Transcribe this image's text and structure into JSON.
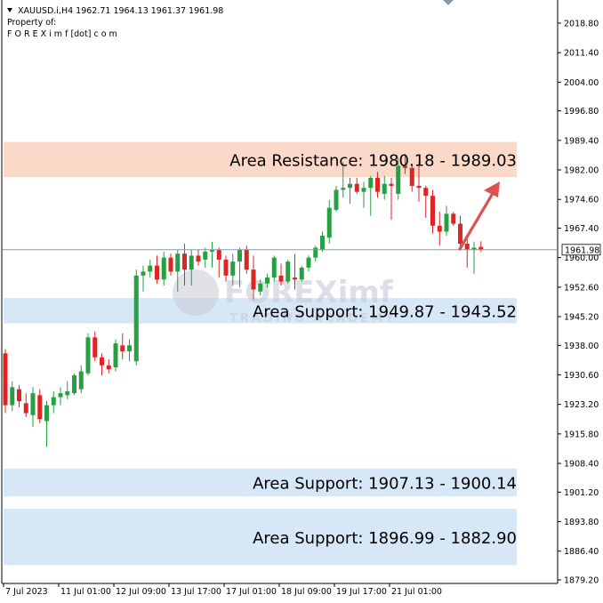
{
  "header": {
    "symbol_line": "XAUUSD.i,H4  1962.71 1964.13 1961.37 1961.98",
    "property_line": "Property of:",
    "owner_line": "F O R E X i m f [dot] c o m"
  },
  "watermark": {
    "brand": "FOREXimf",
    "tagline": "TRADING ACADEMY"
  },
  "colors": {
    "bull": "#26a042",
    "bear": "#e02424",
    "resistance_zone": "#fbd9c9",
    "support_zone": "#d6e8f7",
    "arrow": "#e05050",
    "current_price_line": "#8a9aa8"
  },
  "chart_data": {
    "type": "candlestick",
    "symbol": "XAUUSD.i",
    "timeframe": "H4",
    "ylim": [
      1879.2,
      2022.5
    ],
    "y_ticks": [
      "2018.80",
      "2011.40",
      "2004.00",
      "1996.80",
      "1989.40",
      "1982.00",
      "1974.60",
      "1967.40",
      "1960.00",
      "1952.60",
      "1945.20",
      "1938.00",
      "1930.60",
      "1923.20",
      "1915.80",
      "1908.40",
      "1901.20",
      "1893.80",
      "1886.40",
      "1879.20"
    ],
    "y_tick_values": [
      2018.8,
      2011.4,
      2004.0,
      1996.8,
      1989.4,
      1982.0,
      1974.6,
      1967.4,
      1960.0,
      1952.6,
      1945.2,
      1938.0,
      1930.6,
      1923.2,
      1915.8,
      1908.4,
      1901.2,
      1893.8,
      1886.4,
      1879.2
    ],
    "x_ticks": [
      {
        "label": "7 Jul 2023",
        "index": 0
      },
      {
        "label": "11 Jul 01:00",
        "index": 8
      },
      {
        "label": "12 Jul 09:00",
        "index": 16
      },
      {
        "label": "13 Jul 17:00",
        "index": 24
      },
      {
        "label": "17 Jul 01:00",
        "index": 32
      },
      {
        "label": "18 Jul 09:00",
        "index": 40
      },
      {
        "label": "19 Jul 17:00",
        "index": 48
      },
      {
        "label": "21 Jul 01:00",
        "index": 56
      }
    ],
    "current_price": 1961.98,
    "current_price_label": "1961.98",
    "candles": [
      [
        1936.0,
        1937.0,
        1921.0,
        1923.0
      ],
      [
        1923.0,
        1929.0,
        1921.5,
        1927.5
      ],
      [
        1927.0,
        1928.0,
        1922.5,
        1924.0
      ],
      [
        1923.5,
        1926.0,
        1920.0,
        1921.0
      ],
      [
        1920.5,
        1927.5,
        1917.5,
        1926.0
      ],
      [
        1925.5,
        1927.0,
        1918.5,
        1919.5
      ],
      [
        1919.0,
        1924.0,
        1912.5,
        1923.0
      ],
      [
        1923.0,
        1926.5,
        1921.0,
        1925.0
      ],
      [
        1925.0,
        1927.5,
        1923.0,
        1926.0
      ],
      [
        1925.5,
        1929.0,
        1924.5,
        1926.5
      ],
      [
        1926.0,
        1931.0,
        1925.5,
        1930.5
      ],
      [
        1927.0,
        1933.0,
        1926.0,
        1931.5
      ],
      [
        1931.0,
        1941.0,
        1930.5,
        1940.0
      ],
      [
        1940.0,
        1941.5,
        1934.0,
        1935.0
      ],
      [
        1935.0,
        1936.0,
        1930.5,
        1933.0
      ],
      [
        1933.0,
        1934.5,
        1931.0,
        1932.0
      ],
      [
        1932.5,
        1939.5,
        1931.5,
        1938.5
      ],
      [
        1938.0,
        1941.0,
        1934.5,
        1936.5
      ],
      [
        1936.5,
        1939.5,
        1934.0,
        1938.0
      ],
      [
        1934.0,
        1957.0,
        1933.0,
        1955.5
      ],
      [
        1955.5,
        1958.0,
        1951.5,
        1956.5
      ],
      [
        1956.5,
        1959.5,
        1955.0,
        1958.0
      ],
      [
        1958.0,
        1960.5,
        1953.5,
        1954.5
      ],
      [
        1954.5,
        1961.5,
        1953.0,
        1960.0
      ],
      [
        1960.0,
        1961.0,
        1955.5,
        1956.5
      ],
      [
        1956.5,
        1962.0,
        1951.5,
        1961.0
      ],
      [
        1961.0,
        1963.5,
        1953.0,
        1957.0
      ],
      [
        1957.0,
        1962.0,
        1953.0,
        1960.5
      ],
      [
        1960.5,
        1962.0,
        1958.0,
        1959.0
      ],
      [
        1959.5,
        1962.5,
        1957.5,
        1961.5
      ],
      [
        1961.5,
        1964.0,
        1957.5,
        1962.0
      ],
      [
        1962.0,
        1962.5,
        1955.0,
        1959.5
      ],
      [
        1959.5,
        1960.5,
        1954.0,
        1955.5
      ],
      [
        1955.5,
        1961.0,
        1953.0,
        1959.0
      ],
      [
        1959.0,
        1962.5,
        1952.5,
        1962.0
      ],
      [
        1962.0,
        1963.0,
        1956.0,
        1957.0
      ],
      [
        1957.0,
        1960.5,
        1949.5,
        1952.0
      ],
      [
        1951.5,
        1954.5,
        1950.5,
        1953.5
      ],
      [
        1953.5,
        1956.0,
        1952.5,
        1955.0
      ],
      [
        1955.0,
        1960.5,
        1954.0,
        1960.0
      ],
      [
        1955.5,
        1958.5,
        1953.0,
        1954.0
      ],
      [
        1954.0,
        1959.5,
        1953.5,
        1959.0
      ],
      [
        1955.0,
        1961.0,
        1952.0,
        1954.5
      ],
      [
        1954.5,
        1958.0,
        1954.0,
        1957.5
      ],
      [
        1957.5,
        1960.5,
        1956.5,
        1960.0
      ],
      [
        1960.0,
        1963.0,
        1959.0,
        1962.5
      ],
      [
        1962.0,
        1966.5,
        1961.5,
        1965.5
      ],
      [
        1965.0,
        1974.5,
        1963.5,
        1972.5
      ],
      [
        1972.0,
        1978.0,
        1971.5,
        1977.0
      ],
      [
        1977.0,
        1984.0,
        1975.0,
        1977.5
      ],
      [
        1977.5,
        1980.0,
        1973.5,
        1978.5
      ],
      [
        1978.5,
        1980.0,
        1976.0,
        1976.5
      ],
      [
        1976.5,
        1979.0,
        1972.5,
        1977.5
      ],
      [
        1977.5,
        1980.5,
        1970.5,
        1980.0
      ],
      [
        1980.0,
        1981.5,
        1975.0,
        1976.5
      ],
      [
        1976.0,
        1980.5,
        1974.5,
        1978.5
      ],
      [
        1978.5,
        1980.0,
        1969.5,
        1978.0
      ],
      [
        1976.0,
        1985.0,
        1974.5,
        1983.0
      ],
      [
        1983.0,
        1986.0,
        1981.0,
        1982.5
      ],
      [
        1982.5,
        1983.5,
        1976.5,
        1978.0
      ],
      [
        1978.0,
        1984.0,
        1974.0,
        1977.5
      ],
      [
        1977.5,
        1978.0,
        1970.0,
        1975.5
      ],
      [
        1975.5,
        1977.0,
        1966.0,
        1968.0
      ],
      [
        1968.0,
        1971.5,
        1963.0,
        1966.5
      ],
      [
        1966.5,
        1973.0,
        1965.5,
        1971.0
      ],
      [
        1971.0,
        1971.5,
        1968.0,
        1968.5
      ],
      [
        1968.5,
        1970.5,
        1962.5,
        1963.5
      ],
      [
        1963.5,
        1965.0,
        1957.5,
        1962.0
      ],
      [
        1962.0,
        1964.0,
        1956.0,
        1962.5
      ],
      [
        1962.7,
        1964.1,
        1961.4,
        1962.0
      ]
    ],
    "zones": [
      {
        "type": "resistance",
        "low": 1980.18,
        "high": 1989.03,
        "label": "Area Resistance: 1980.18 - 1989.03"
      },
      {
        "type": "support",
        "low": 1943.52,
        "high": 1949.87,
        "label": "Area Support: 1949.87 - 1943.52"
      },
      {
        "type": "support",
        "low": 1900.14,
        "high": 1907.13,
        "label": "Area Support: 1907.13 - 1900.14"
      },
      {
        "type": "support",
        "low": 1882.9,
        "high": 1896.99,
        "label": "Area Support: 1896.99 - 1882.90"
      }
    ]
  }
}
